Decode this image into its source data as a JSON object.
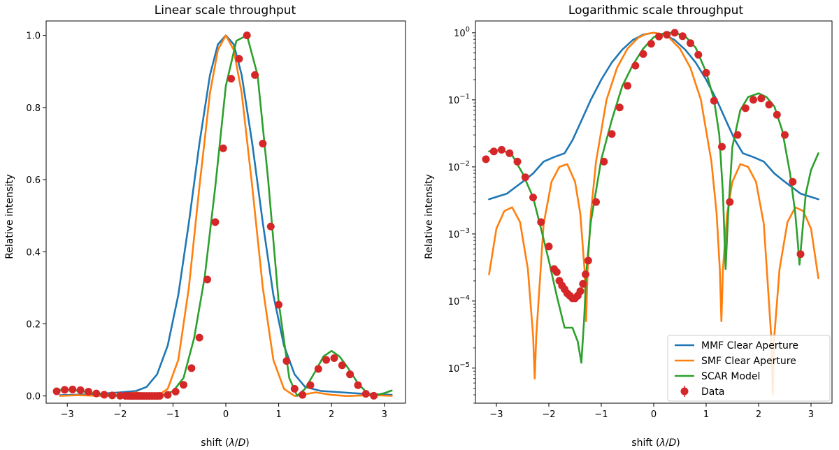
{
  "colors": {
    "mmf": "#1f77b4",
    "smf": "#ff7f0e",
    "scar": "#2ca02c",
    "data": "#d62728"
  },
  "chart_data": [
    {
      "type": "line",
      "title": "Linear scale throughput",
      "xlabel": "shift (λ/D)",
      "ylabel": "Relative intensity",
      "xlim": [
        -3.4,
        3.4
      ],
      "ylim": [
        -0.02,
        1.04
      ],
      "yscale": "linear",
      "xticks": [
        -3,
        -2,
        -1,
        0,
        1,
        2,
        3
      ],
      "xtick_labels": [
        "−3",
        "−2",
        "−1",
        "0",
        "1",
        "2",
        "3"
      ],
      "yticks": [
        0.0,
        0.2,
        0.4,
        0.6,
        0.8,
        1.0
      ],
      "ytick_labels": [
        "0.0",
        "0.2",
        "0.4",
        "0.6",
        "0.8",
        "1.0"
      ],
      "series": [
        {
          "name": "MMF Clear Aperture",
          "color_key": "mmf",
          "x": [
            -3.14,
            -2.5,
            -2.0,
            -1.7,
            -1.5,
            -1.3,
            -1.1,
            -0.9,
            -0.7,
            -0.5,
            -0.3,
            -0.15,
            0.0,
            0.15,
            0.3,
            0.5,
            0.7,
            0.9,
            1.1,
            1.3,
            1.5,
            1.8,
            2.2,
            2.6,
            3.14
          ],
          "y": [
            0.002,
            0.005,
            0.01,
            0.014,
            0.025,
            0.06,
            0.14,
            0.28,
            0.48,
            0.7,
            0.89,
            0.975,
            1.0,
            0.975,
            0.89,
            0.7,
            0.48,
            0.28,
            0.14,
            0.06,
            0.025,
            0.014,
            0.01,
            0.006,
            0.003
          ]
        },
        {
          "name": "SMF Clear Aperture",
          "color_key": "smf",
          "x": [
            -3.14,
            -2.8,
            -2.5,
            -2.27,
            -2.0,
            -1.7,
            -1.5,
            -1.3,
            -1.1,
            -0.9,
            -0.7,
            -0.5,
            -0.3,
            -0.15,
            0.0,
            0.15,
            0.3,
            0.5,
            0.7,
            0.9,
            1.1,
            1.3,
            1.5,
            1.7,
            2.0,
            2.27,
            2.5,
            2.8,
            3.14
          ],
          "y": [
            0.0003,
            0.002,
            0.001,
            0.0,
            0.003,
            0.01,
            0.005,
            0.0,
            0.02,
            0.1,
            0.3,
            0.58,
            0.84,
            0.96,
            1.0,
            0.96,
            0.84,
            0.58,
            0.3,
            0.1,
            0.02,
            0.0,
            0.005,
            0.01,
            0.003,
            0.0,
            0.001,
            0.002,
            0.0003
          ]
        },
        {
          "name": "SCAR Model",
          "color_key": "scar",
          "x": [
            -3.14,
            -2.8,
            -2.5,
            -2.2,
            -2.0,
            -1.8,
            -1.6,
            -1.4,
            -1.3,
            -1.2,
            -1.0,
            -0.8,
            -0.6,
            -0.4,
            -0.2,
            0.0,
            0.2,
            0.4,
            0.6,
            0.8,
            1.0,
            1.2,
            1.35,
            1.5,
            1.7,
            1.85,
            2.0,
            2.15,
            2.3,
            2.5,
            2.7,
            2.78,
            3.0,
            3.14
          ],
          "y": [
            0.017,
            0.015,
            0.007,
            0.0015,
            0.0004,
            0.0002,
            0.0001,
            0.0001,
            0.0004,
            0.003,
            0.013,
            0.05,
            0.16,
            0.33,
            0.58,
            0.86,
            0.985,
            1.0,
            0.89,
            0.6,
            0.26,
            0.05,
            0.0003,
            0.02,
            0.07,
            0.11,
            0.125,
            0.11,
            0.08,
            0.035,
            0.004,
            0.0003,
            0.008,
            0.015
          ]
        }
      ],
      "data": {
        "name": "Data",
        "color_key": "data",
        "x": [
          -3.2,
          -3.05,
          -2.9,
          -2.75,
          -2.6,
          -2.45,
          -2.3,
          -2.15,
          -2.0,
          -1.9,
          -1.85,
          -1.8,
          -1.75,
          -1.7,
          -1.65,
          -1.6,
          -1.55,
          -1.5,
          -1.45,
          -1.4,
          -1.35,
          -1.3,
          -1.25,
          -1.1,
          -0.95,
          -0.8,
          -0.65,
          -0.5,
          -0.35,
          -0.2,
          -0.05,
          0.1,
          0.25,
          0.4,
          0.55,
          0.7,
          0.85,
          1.0,
          1.15,
          1.3,
          1.45,
          1.6,
          1.75,
          1.9,
          2.05,
          2.2,
          2.35,
          2.5,
          2.65,
          2.8
        ],
        "y": [
          0.013,
          0.017,
          0.018,
          0.016,
          0.012,
          0.007,
          0.0035,
          0.0015,
          0.00065,
          0.0003,
          0.00027,
          0.0002,
          0.00017,
          0.00015,
          0.00013,
          0.00012,
          0.00011,
          0.00011,
          0.00012,
          0.00014,
          0.00018,
          0.00025,
          0.0004,
          0.003,
          0.012,
          0.031,
          0.077,
          0.162,
          0.323,
          0.482,
          0.687,
          0.88,
          0.935,
          1.0,
          0.89,
          0.7,
          0.47,
          0.253,
          0.097,
          0.02,
          0.003,
          0.03,
          0.075,
          0.1,
          0.105,
          0.085,
          0.06,
          0.03,
          0.006,
          0.0005
        ]
      }
    },
    {
      "type": "line",
      "title": "Logarithmic scale throughput",
      "xlabel": "shift (λ/D)",
      "ylabel": "Relative intensity",
      "xlim": [
        -3.4,
        3.4
      ],
      "ylim": [
        3e-06,
        1.5
      ],
      "yscale": "log",
      "xticks": [
        -3,
        -2,
        -1,
        0,
        1,
        2,
        3
      ],
      "xtick_labels": [
        "−3",
        "−2",
        "−1",
        "0",
        "1",
        "2",
        "3"
      ],
      "yticks": [
        1e-05,
        0.0001,
        0.001,
        0.01,
        0.1,
        1
      ],
      "ytick_labels": [
        {
          "base": "10",
          "exp": "−5"
        },
        {
          "base": "10",
          "exp": "−4"
        },
        {
          "base": "10",
          "exp": "−3"
        },
        {
          "base": "10",
          "exp": "−2"
        },
        {
          "base": "10",
          "exp": "−1"
        },
        {
          "base": "10",
          "exp": "0"
        }
      ],
      "legend": {
        "placement": "lower-right",
        "entries": [
          "MMF Clear Aperture",
          "SMF Clear Aperture",
          "SCAR Model",
          "Data"
        ]
      },
      "series": [
        {
          "name": "MMF Clear Aperture",
          "color_key": "mmf",
          "x": [
            -3.14,
            -2.8,
            -2.5,
            -2.3,
            -2.1,
            -1.9,
            -1.7,
            -1.55,
            -1.4,
            -1.2,
            -1.0,
            -0.8,
            -0.6,
            -0.4,
            -0.2,
            0.0,
            0.2,
            0.4,
            0.6,
            0.8,
            1.0,
            1.2,
            1.4,
            1.55,
            1.7,
            1.9,
            2.1,
            2.3,
            2.5,
            2.8,
            3.14
          ],
          "y": [
            0.0033,
            0.004,
            0.006,
            0.008,
            0.012,
            0.014,
            0.016,
            0.025,
            0.045,
            0.1,
            0.2,
            0.36,
            0.56,
            0.78,
            0.94,
            1.0,
            0.94,
            0.78,
            0.56,
            0.36,
            0.2,
            0.1,
            0.045,
            0.025,
            0.016,
            0.014,
            0.012,
            0.008,
            0.006,
            0.004,
            0.0033
          ]
        },
        {
          "name": "SMF Clear Aperture",
          "color_key": "smf",
          "x": [
            -3.14,
            -3.0,
            -2.85,
            -2.7,
            -2.55,
            -2.4,
            -2.3,
            -2.27,
            -2.24,
            -2.1,
            -1.95,
            -1.8,
            -1.65,
            -1.5,
            -1.4,
            -1.32,
            -1.29,
            -1.26,
            -1.2,
            -1.1,
            -0.9,
            -0.7,
            -0.5,
            -0.3,
            -0.15,
            0.0,
            0.15,
            0.3,
            0.5,
            0.7,
            0.9,
            1.1,
            1.2,
            1.26,
            1.29,
            1.32,
            1.4,
            1.5,
            1.65,
            1.8,
            1.95,
            2.1,
            2.24,
            2.27,
            2.3,
            2.4,
            2.55,
            2.7,
            2.85,
            3.0,
            3.14
          ],
          "y": [
            0.00025,
            0.0012,
            0.0022,
            0.0025,
            0.0015,
            0.0003,
            3e-05,
            7e-06,
            3e-05,
            0.0014,
            0.006,
            0.01,
            0.011,
            0.006,
            0.002,
            0.0003,
            5e-05,
            0.0003,
            0.002,
            0.012,
            0.1,
            0.3,
            0.58,
            0.84,
            0.96,
            1.0,
            0.96,
            0.84,
            0.58,
            0.3,
            0.1,
            0.012,
            0.002,
            0.0003,
            5e-05,
            0.0003,
            0.002,
            0.006,
            0.011,
            0.01,
            0.006,
            0.0014,
            3e-05,
            4e-06,
            3e-05,
            0.0003,
            0.0015,
            0.0025,
            0.0022,
            0.0012,
            0.00022
          ]
        },
        {
          "name": "SCAR Model",
          "color_key": "scar",
          "x": [
            -3.14,
            -2.9,
            -2.7,
            -2.5,
            -2.3,
            -2.15,
            -2.0,
            -1.85,
            -1.7,
            -1.55,
            -1.45,
            -1.38,
            -1.33,
            -1.28,
            -1.2,
            -1.0,
            -0.8,
            -0.6,
            -0.4,
            -0.2,
            0.0,
            0.2,
            0.4,
            0.6,
            0.8,
            1.0,
            1.15,
            1.25,
            1.32,
            1.37,
            1.42,
            1.5,
            1.65,
            1.8,
            2.0,
            2.15,
            2.3,
            2.45,
            2.6,
            2.7,
            2.75,
            2.78,
            2.82,
            2.9,
            3.0,
            3.14
          ],
          "y": [
            0.017,
            0.018,
            0.015,
            0.008,
            0.0035,
            0.0012,
            0.0004,
            0.00012,
            4e-05,
            4e-05,
            2.5e-05,
            1.2e-05,
            5e-05,
            0.0003,
            0.0015,
            0.013,
            0.05,
            0.16,
            0.33,
            0.58,
            0.86,
            0.985,
            1.0,
            0.89,
            0.6,
            0.26,
            0.1,
            0.03,
            0.004,
            0.0003,
            0.002,
            0.02,
            0.07,
            0.11,
            0.125,
            0.11,
            0.08,
            0.035,
            0.008,
            0.002,
            0.0007,
            0.00035,
            0.0008,
            0.004,
            0.009,
            0.016
          ]
        }
      ],
      "data": {
        "name": "Data",
        "color_key": "data",
        "x": [
          -3.2,
          -3.05,
          -2.9,
          -2.75,
          -2.6,
          -2.45,
          -2.3,
          -2.15,
          -2.0,
          -1.9,
          -1.85,
          -1.8,
          -1.75,
          -1.7,
          -1.65,
          -1.6,
          -1.55,
          -1.5,
          -1.45,
          -1.4,
          -1.35,
          -1.3,
          -1.25,
          -1.1,
          -0.95,
          -0.8,
          -0.65,
          -0.5,
          -0.35,
          -0.2,
          -0.05,
          0.1,
          0.25,
          0.4,
          0.55,
          0.7,
          0.85,
          1.0,
          1.15,
          1.3,
          1.45,
          1.6,
          1.75,
          1.9,
          2.05,
          2.2,
          2.35,
          2.5,
          2.65,
          2.8
        ],
        "y": [
          0.013,
          0.017,
          0.018,
          0.016,
          0.012,
          0.007,
          0.0035,
          0.0015,
          0.00065,
          0.0003,
          0.00027,
          0.0002,
          0.00017,
          0.00015,
          0.00013,
          0.00012,
          0.00011,
          0.00011,
          0.00012,
          0.00014,
          0.00018,
          0.00025,
          0.0004,
          0.003,
          0.012,
          0.031,
          0.077,
          0.162,
          0.323,
          0.482,
          0.687,
          0.88,
          0.935,
          1.0,
          0.89,
          0.7,
          0.47,
          0.253,
          0.097,
          0.02,
          0.003,
          0.03,
          0.075,
          0.1,
          0.105,
          0.085,
          0.06,
          0.03,
          0.006,
          0.0005
        ]
      }
    }
  ]
}
